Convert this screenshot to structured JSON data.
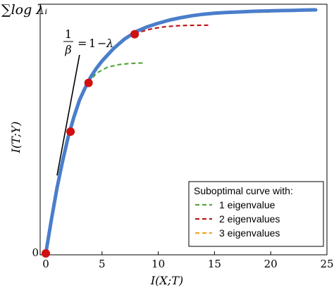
{
  "chart_data": {
    "type": "line",
    "title": "",
    "xlabel": "I(X;T)",
    "ylabel": "I(T;Y)",
    "y_top_label": "∑log λᵢ",
    "y_origin_label": "0",
    "xlim": [
      0,
      25
    ],
    "ylim": [
      0,
      1
    ],
    "grid": false,
    "x_ticks": [
      0,
      5,
      10,
      15,
      20,
      25
    ],
    "x_tick_labels": [
      "0",
      "5",
      "10",
      "15",
      "20",
      "25"
    ],
    "main_curve": {
      "color": "#4a7ecb",
      "x": [
        0,
        0.5,
        1,
        1.5,
        2,
        2.5,
        3,
        3.5,
        4,
        4.5,
        5,
        5.5,
        6,
        6.5,
        7,
        7.5,
        8,
        9,
        10,
        11,
        12,
        13,
        14,
        15,
        16,
        17,
        18,
        19,
        20,
        21,
        22,
        23,
        24
      ],
      "y": [
        0.0,
        0.14,
        0.27,
        0.38,
        0.48,
        0.56,
        0.63,
        0.68,
        0.725,
        0.76,
        0.79,
        0.815,
        0.84,
        0.86,
        0.88,
        0.895,
        0.91,
        0.93,
        0.945,
        0.958,
        0.968,
        0.976,
        0.982,
        0.986,
        0.989,
        0.991,
        0.993,
        0.995,
        0.996,
        0.997,
        0.998,
        0.999,
        1.0
      ]
    },
    "critical_points": {
      "color": "#d10f0f",
      "x": [
        0,
        2.2,
        3.8,
        7.9
      ],
      "y": [
        0.0,
        0.5,
        0.7,
        0.9
      ]
    },
    "tangent_line": {
      "label": "1/β = 1 − λ",
      "color": "#000000",
      "x": [
        1.0,
        3.0
      ],
      "y": [
        0.32,
        0.815
      ]
    },
    "suboptimal_series": [
      {
        "name": "1 eigenvalue",
        "color": "#56a83a",
        "x": [
          3.8,
          4.5,
          5.5,
          6.5,
          7.5,
          8.8
        ],
        "y": [
          0.7,
          0.74,
          0.765,
          0.775,
          0.78,
          0.782
        ]
      },
      {
        "name": "2 eigenvalues",
        "color": "#c01818",
        "x": [
          7.9,
          8.6,
          9.5,
          10.5,
          11.5,
          12.5,
          14.6
        ],
        "y": [
          0.9,
          0.912,
          0.923,
          0.93,
          0.934,
          0.936,
          0.937
        ]
      },
      {
        "name": "3 eigenvalues",
        "color": "#f5a623",
        "x": [
          12.0,
          13.0,
          14.5,
          16.0,
          18.0,
          20.0
        ],
        "y": [
          0.968,
          0.977,
          0.984,
          0.988,
          0.99,
          0.991
        ]
      }
    ],
    "legend": {
      "title": "Suboptimal curve with:",
      "placement": "bottom-right"
    }
  }
}
